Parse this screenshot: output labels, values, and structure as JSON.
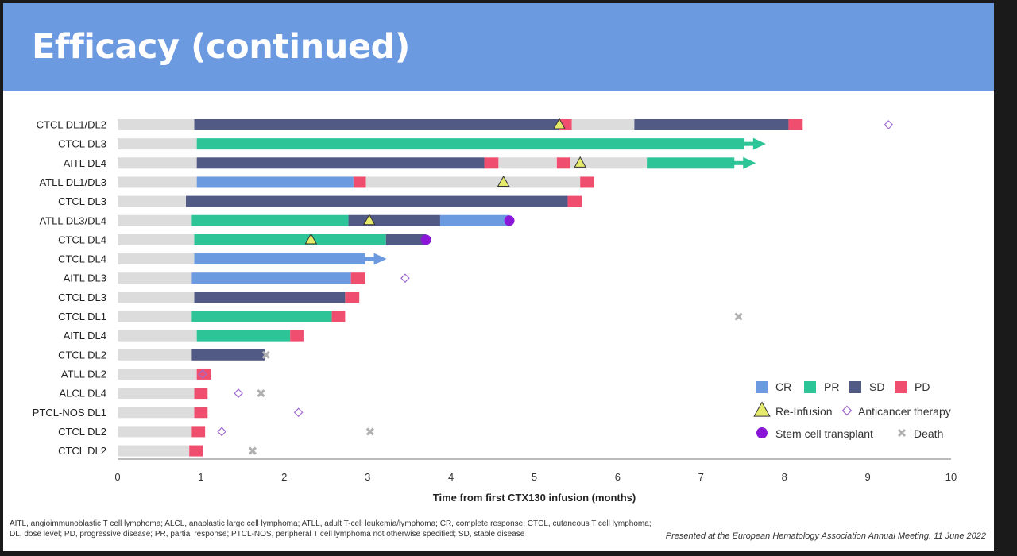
{
  "slide": {
    "title": "Efficacy (continued)",
    "footnote_line1": "AITL, angioimmunoblastic T cell lymphoma; ALCL, anaplastic large cell lymphoma; ATLL, adult T-cell leukemia/lymphoma; CR, complete response; CTCL, cutaneous T cell lymphoma;",
    "footnote_line2": "DL, dose level; PD, progressive disease; PR, partial response; PTCL-NOS, peripheral T cell lymphoma not otherwise specified; SD, stable disease",
    "citation": "Presented at the European Hematology Association Annual Meeting. 11 June 2022"
  },
  "colors": {
    "baseline": "#dcdcdc",
    "CR": "#6c9ae0",
    "PR": "#2dc497",
    "SD": "#515a85",
    "PD": "#f04e6e",
    "reinfusion_fill": "#e6ea6a",
    "anticancer": "#a06ad0",
    "stem_cell": "#8a16d8",
    "death": "#b0b0b0"
  },
  "chart_data": {
    "type": "swimmer",
    "xlabel": "Time from first CTX130 infusion (months)",
    "xlim": [
      0,
      10
    ],
    "xticks": [
      0,
      1,
      2,
      3,
      4,
      5,
      6,
      7,
      8,
      9,
      10
    ],
    "legend": {
      "CR": "CR",
      "PR": "PR",
      "SD": "SD",
      "PD": "PD",
      "reinfusion": "Re-Infusion",
      "anticancer": "Anticancer therapy",
      "stem_cell": "Stem cell transplant",
      "death": "Death"
    },
    "patients": [
      {
        "label": "CTCL DL1/DL2",
        "segments": [
          [
            "base",
            0,
            0.92
          ],
          [
            "SD",
            0.92,
            5.3
          ],
          [
            "PD",
            5.3,
            5.45
          ],
          [
            "base",
            5.45,
            6.2
          ],
          [
            "SD",
            6.2,
            8.05
          ],
          [
            "PD",
            8.05,
            8.22
          ]
        ],
        "reinfusion": [
          5.3
        ],
        "anticancer": [
          9.25
        ],
        "death": [],
        "stem_cell": [],
        "arrow": false
      },
      {
        "label": "CTCL DL3",
        "segments": [
          [
            "base",
            0,
            0.95
          ],
          [
            "PR",
            0.95,
            7.52
          ]
        ],
        "reinfusion": [],
        "anticancer": [],
        "death": [],
        "stem_cell": [],
        "arrow": true
      },
      {
        "label": "AITL DL4",
        "segments": [
          [
            "base",
            0,
            0.95
          ],
          [
            "SD",
            0.95,
            4.4
          ],
          [
            "PD",
            4.4,
            4.57
          ],
          [
            "base",
            4.57,
            5.27
          ],
          [
            "PD",
            5.27,
            5.43
          ],
          [
            "base",
            5.43,
            6.35
          ],
          [
            "PR",
            6.35,
            7.4
          ]
        ],
        "reinfusion": [
          5.55
        ],
        "anticancer": [],
        "death": [],
        "stem_cell": [],
        "arrow": true
      },
      {
        "label": "ATLL DL1/DL3",
        "segments": [
          [
            "base",
            0,
            0.95
          ],
          [
            "CR",
            0.95,
            2.83
          ],
          [
            "PD",
            2.83,
            2.98
          ],
          [
            "base",
            2.98,
            5.55
          ],
          [
            "PD",
            5.55,
            5.72
          ]
        ],
        "reinfusion": [
          4.63
        ],
        "anticancer": [],
        "death": [],
        "stem_cell": [],
        "arrow": false
      },
      {
        "label": "CTCL DL3",
        "segments": [
          [
            "base",
            0,
            0.82
          ],
          [
            "SD",
            0.82,
            5.4
          ],
          [
            "PD",
            5.4,
            5.57
          ]
        ],
        "reinfusion": [],
        "anticancer": [],
        "death": [],
        "stem_cell": [],
        "arrow": false
      },
      {
        "label": "ATLL DL3/DL4",
        "segments": [
          [
            "base",
            0,
            0.89
          ],
          [
            "PR",
            0.89,
            2.77
          ],
          [
            "SD",
            2.77,
            3.87
          ],
          [
            "CR",
            3.87,
            4.7
          ]
        ],
        "reinfusion": [
          3.02
        ],
        "anticancer": [],
        "death": [],
        "stem_cell": [
          4.7
        ],
        "arrow": false
      },
      {
        "label": "CTCL DL4",
        "segments": [
          [
            "base",
            0,
            0.92
          ],
          [
            "PR",
            0.92,
            3.22
          ],
          [
            "SD",
            3.22,
            3.7
          ]
        ],
        "reinfusion": [
          2.32
        ],
        "anticancer": [],
        "death": [],
        "stem_cell": [
          3.7
        ],
        "arrow": false
      },
      {
        "label": "CTCL DL4",
        "segments": [
          [
            "base",
            0,
            0.92
          ],
          [
            "CR",
            0.92,
            2.97
          ]
        ],
        "reinfusion": [],
        "anticancer": [],
        "death": [],
        "stem_cell": [],
        "arrow": true
      },
      {
        "label": "AITL DL3",
        "segments": [
          [
            "base",
            0,
            0.89
          ],
          [
            "CR",
            0.89,
            2.8
          ],
          [
            "PD",
            2.8,
            2.97
          ]
        ],
        "reinfusion": [],
        "anticancer": [
          3.45
        ],
        "death": [],
        "stem_cell": [],
        "arrow": false
      },
      {
        "label": "CTCL DL3",
        "segments": [
          [
            "base",
            0,
            0.92
          ],
          [
            "SD",
            0.92,
            2.73
          ],
          [
            "PD",
            2.73,
            2.9
          ]
        ],
        "reinfusion": [],
        "anticancer": [],
        "death": [],
        "stem_cell": [],
        "arrow": false
      },
      {
        "label": "CTCL DL1",
        "segments": [
          [
            "base",
            0,
            0.89
          ],
          [
            "PR",
            0.89,
            2.57
          ],
          [
            "PD",
            2.57,
            2.73
          ]
        ],
        "reinfusion": [],
        "anticancer": [],
        "death": [
          7.45
        ],
        "stem_cell": [],
        "arrow": false
      },
      {
        "label": "AITL DL4",
        "segments": [
          [
            "base",
            0,
            0.95
          ],
          [
            "PR",
            0.95,
            2.07
          ],
          [
            "PD",
            2.07,
            2.23
          ]
        ],
        "reinfusion": [],
        "anticancer": [],
        "death": [],
        "stem_cell": [],
        "arrow": false
      },
      {
        "label": "CTCL DL2",
        "segments": [
          [
            "base",
            0,
            0.89
          ],
          [
            "SD",
            0.89,
            1.77
          ]
        ],
        "reinfusion": [],
        "anticancer": [],
        "death": [
          1.78
        ],
        "stem_cell": [],
        "arrow": false
      },
      {
        "label": "ATLL DL2",
        "segments": [
          [
            "base",
            0,
            0.95
          ],
          [
            "PD",
            0.95,
            1.12
          ]
        ],
        "reinfusion": [],
        "anticancer": [
          1.02
        ],
        "death": [],
        "stem_cell": [],
        "arrow": false
      },
      {
        "label": "ALCL DL4",
        "segments": [
          [
            "base",
            0,
            0.92
          ],
          [
            "PD",
            0.92,
            1.08
          ]
        ],
        "reinfusion": [],
        "anticancer": [
          1.45
        ],
        "death": [
          1.72
        ],
        "stem_cell": [],
        "arrow": false
      },
      {
        "label": "PTCL-NOS DL1",
        "segments": [
          [
            "base",
            0,
            0.92
          ],
          [
            "PD",
            0.92,
            1.08
          ]
        ],
        "reinfusion": [],
        "anticancer": [
          2.17
        ],
        "death": [],
        "stem_cell": [],
        "arrow": false
      },
      {
        "label": "CTCL DL2",
        "segments": [
          [
            "base",
            0,
            0.89
          ],
          [
            "PD",
            0.89,
            1.05
          ]
        ],
        "reinfusion": [],
        "anticancer": [
          1.25
        ],
        "death": [
          3.03
        ],
        "stem_cell": [],
        "arrow": false
      },
      {
        "label": "CTCL DL2",
        "segments": [
          [
            "base",
            0,
            0.86
          ],
          [
            "PD",
            0.86,
            1.02
          ]
        ],
        "reinfusion": [],
        "anticancer": [],
        "death": [
          1.62
        ],
        "stem_cell": [],
        "arrow": false
      }
    ]
  }
}
